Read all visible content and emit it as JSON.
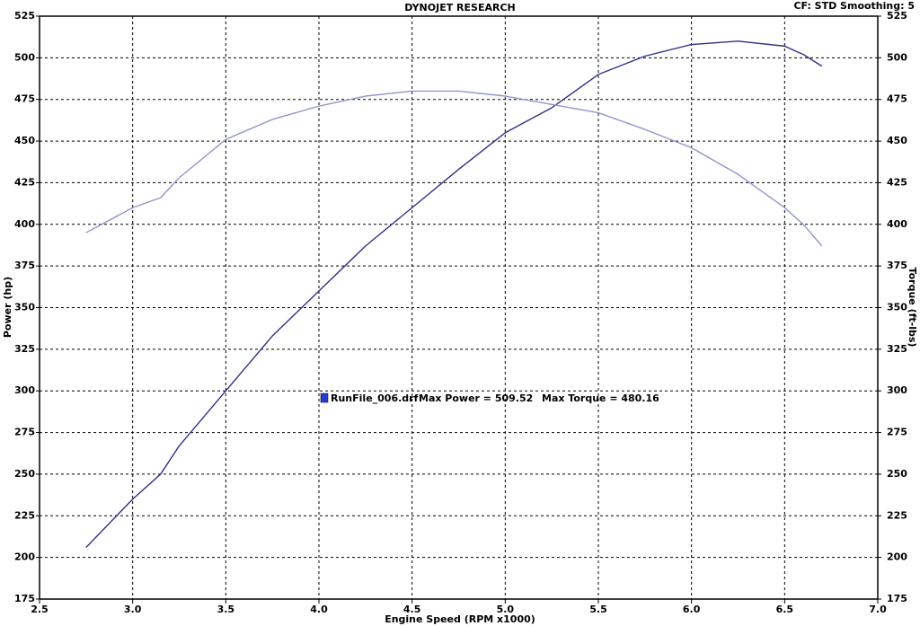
{
  "chart_data": {
    "type": "line",
    "title": "DYNOJET RESEARCH",
    "subtitle": "CF: STD  Smoothing: 5",
    "xlabel": "Engine Speed (RPM x1000)",
    "ylabel": "Power (hp)",
    "y2label": "Torque (ft-lbs)",
    "annotation": {
      "file": "RunFile_006.drf",
      "power": "Max Power = 509.52",
      "torque": "Max Torque = 480.16"
    },
    "x": [
      2.75,
      3.0,
      3.15,
      3.25,
      3.5,
      3.75,
      4.0,
      4.25,
      4.5,
      4.75,
      5.0,
      5.25,
      5.5,
      5.75,
      6.0,
      6.25,
      6.5,
      6.6,
      6.7
    ],
    "series": [
      {
        "color": "#2e3282",
        "values": [
          206,
          235,
          250,
          267,
          300,
          333,
          360,
          387,
          410,
          433,
          455,
          470,
          490,
          501,
          508,
          510,
          507,
          502,
          495
        ]
      },
      {
        "color": "#9096cc",
        "axis": "y2",
        "values": [
          395,
          410,
          416,
          428,
          451,
          463,
          471,
          477,
          480,
          480,
          477,
          472,
          467,
          457,
          446,
          430,
          410,
          400,
          387
        ]
      }
    ],
    "legend_color": "#2a3bd0",
    "xlim": [
      2.5,
      7.0
    ],
    "xticks": [
      2.5,
      {
        "value": 3,
        "label": "3.0"
      },
      3.5,
      {
        "value": 4,
        "label": "4.0"
      },
      4.5,
      {
        "value": 5,
        "label": "5.0"
      },
      5.5,
      {
        "value": 6,
        "label": "6.0"
      },
      6.5,
      {
        "value": 7,
        "label": "7.0"
      }
    ],
    "ylim": [
      175,
      525
    ],
    "yticks": [
      175,
      200,
      225,
      250,
      275,
      300,
      325,
      350,
      375,
      400,
      425,
      450,
      475,
      500,
      525
    ],
    "y2lim": [
      175,
      525
    ],
    "y2ticks": [
      175,
      200,
      225,
      250,
      275,
      300,
      325,
      350,
      375,
      400,
      425,
      450,
      475,
      500,
      525
    ],
    "grid": true
  }
}
